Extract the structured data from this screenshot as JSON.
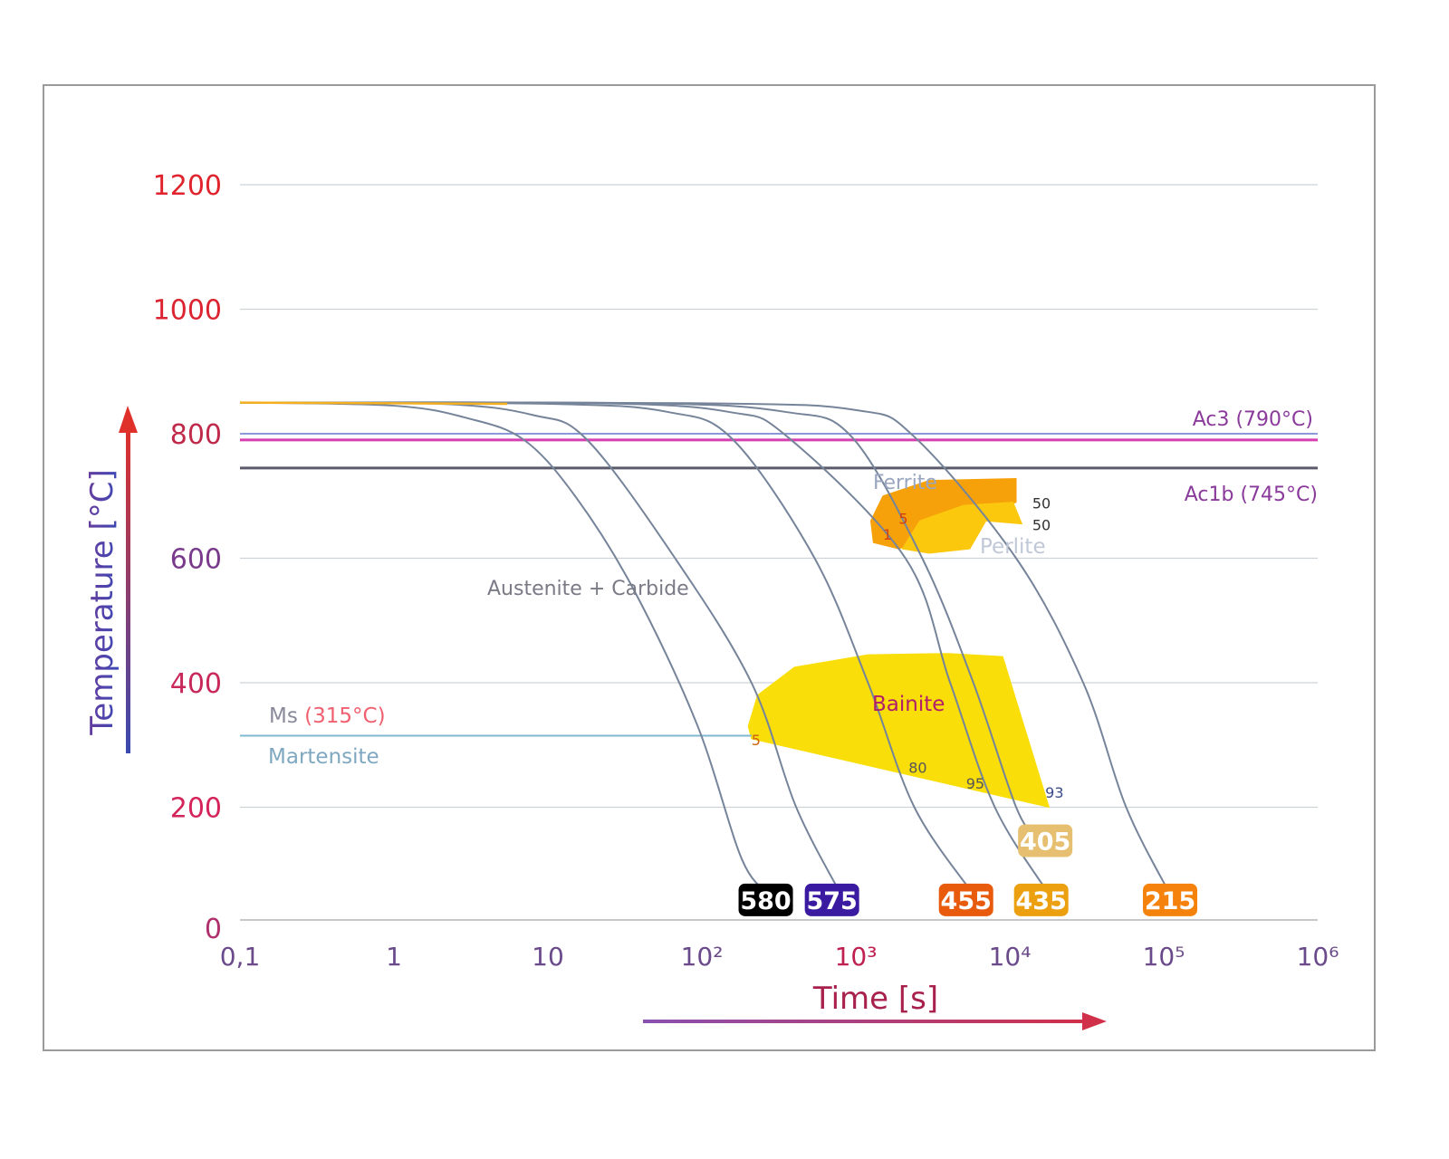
{
  "chart_data": {
    "type": "line",
    "title": "",
    "xlabel": "Time [s]",
    "ylabel": "Temperature [°C]",
    "xscale": "log",
    "xlim": [
      0.1,
      1000000
    ],
    "ylim": [
      0,
      1200
    ],
    "grid": true,
    "x_ticks": [
      {
        "value": 0.1,
        "label": "0,1"
      },
      {
        "value": 1,
        "label": "1"
      },
      {
        "value": 10,
        "label": "10"
      },
      {
        "value": 100,
        "label": "10²"
      },
      {
        "value": 1000,
        "label": "10³"
      },
      {
        "value": 10000,
        "label": "10⁴"
      },
      {
        "value": 100000,
        "label": "10⁵"
      },
      {
        "value": 1000000,
        "label": "10⁶"
      }
    ],
    "y_ticks": [
      {
        "value": 0,
        "label": "0",
        "color": "#b0306e"
      },
      {
        "value": 200,
        "label": "200",
        "color": "#d4245a"
      },
      {
        "value": 400,
        "label": "400",
        "color": "#c8285a"
      },
      {
        "value": 600,
        "label": "600",
        "color": "#7a3a8c"
      },
      {
        "value": 800,
        "label": "800",
        "color": "#c02a4a"
      },
      {
        "value": 1000,
        "label": "1000",
        "color": "#dc2330"
      },
      {
        "value": 1200,
        "label": "1200",
        "color": "#e0232c"
      }
    ],
    "reference_lines": [
      {
        "label": "Ac3 (790°C)",
        "value": 790,
        "color": "#d63fb0",
        "label_color": "#8a3a9a"
      },
      {
        "label": "Ac1b (745°C)",
        "value": 745,
        "color": "#5a5a6a",
        "label_color": "#8a3a9a"
      },
      {
        "label": "Ms",
        "label_extra": "(315°C)",
        "value": 315,
        "color": "#7fb8d0",
        "label_color": "#8a8a9a",
        "extra_color": "#f06070"
      }
    ],
    "region_labels": {
      "austenite": "Austenite + Carbide",
      "martensite": "Martensite",
      "ferrite": "Ferrite",
      "perlite": "Perlite",
      "bainite": "Bainite"
    },
    "regions": [
      {
        "name": "ferrite",
        "color": "#f7a10a",
        "points": [
          [
            1250,
            660
          ],
          [
            1500,
            700
          ],
          [
            3000,
            725
          ],
          [
            11000,
            728
          ],
          [
            11000,
            690
          ],
          [
            1900,
            615
          ],
          [
            1300,
            625
          ]
        ]
      },
      {
        "name": "perlite",
        "color": "#fbc80e",
        "points": [
          [
            2000,
            615
          ],
          [
            2600,
            660
          ],
          [
            5000,
            685
          ],
          [
            10500,
            690
          ],
          [
            12000,
            655
          ],
          [
            7000,
            660
          ],
          [
            5500,
            615
          ],
          [
            3000,
            608
          ]
        ]
      },
      {
        "name": "bainite",
        "color": "#f9de0a",
        "points": [
          [
            200,
            330
          ],
          [
            230,
            380
          ],
          [
            400,
            425
          ],
          [
            1200,
            445
          ],
          [
            4000,
            447
          ],
          [
            9000,
            442
          ],
          [
            18000,
            200
          ],
          [
            210,
            310
          ]
        ]
      }
    ],
    "region_annotations": [
      {
        "text": "1",
        "t": 1500,
        "T": 630,
        "color": "#d04010"
      },
      {
        "text": "5",
        "t": 1900,
        "T": 655,
        "color": "#d04010"
      },
      {
        "text": "50",
        "t": 14000,
        "T": 680,
        "color": "#333"
      },
      {
        "text": "50",
        "t": 14000,
        "T": 645,
        "color": "#333"
      },
      {
        "text": "5",
        "t": 210,
        "T": 300,
        "color": "#d06010"
      },
      {
        "text": "80",
        "t": 2200,
        "T": 255,
        "color": "#555"
      },
      {
        "text": "95",
        "t": 5200,
        "T": 230,
        "color": "#555"
      },
      {
        "text": "93",
        "t": 17000,
        "T": 215,
        "color": "#3a4a8a"
      }
    ],
    "curves": [
      {
        "hardness": "580",
        "badge_color": "#000000",
        "badge_t": 260,
        "badge_T": 25,
        "points": [
          [
            0.1,
            850
          ],
          [
            1,
            845
          ],
          [
            3,
            825
          ],
          [
            7,
            790
          ],
          [
            15,
            700
          ],
          [
            36,
            550
          ],
          [
            93,
            333
          ],
          [
            183,
            115
          ],
          [
            280,
            60
          ]
        ]
      },
      {
        "hardness": "575",
        "badge_color": "#3a1aa0",
        "badge_t": 700,
        "badge_T": 25,
        "points": [
          [
            0.1,
            850
          ],
          [
            2,
            848
          ],
          [
            8,
            830
          ],
          [
            18,
            790
          ],
          [
            67,
            600
          ],
          [
            210,
            400
          ],
          [
            410,
            200
          ],
          [
            800,
            60
          ]
        ]
      },
      {
        "hardness": "455",
        "badge_color": "#e85a0c",
        "badge_t": 5200,
        "badge_T": 25,
        "points": [
          [
            0.1,
            850
          ],
          [
            10,
            848
          ],
          [
            60,
            835
          ],
          [
            160,
            790
          ],
          [
            540,
            600
          ],
          [
            1200,
            400
          ],
          [
            2400,
            200
          ],
          [
            5800,
            60
          ]
        ]
      },
      {
        "hardness": "435",
        "badge_color": "#eca010",
        "badge_t": 16000,
        "badge_T": 25,
        "points": [
          [
            0.1,
            850
          ],
          [
            20,
            849
          ],
          [
            150,
            835
          ],
          [
            360,
            795
          ],
          [
            2100,
            600
          ],
          [
            4100,
            400
          ],
          [
            8000,
            200
          ],
          [
            18000,
            60
          ]
        ]
      },
      {
        "hardness": "405",
        "badge_color": "#e6c070",
        "badge_t": 17000,
        "badge_T": 120,
        "points": [
          [
            0.1,
            850
          ],
          [
            40,
            849
          ],
          [
            350,
            835
          ],
          [
            940,
            795
          ],
          [
            2700,
            600
          ],
          [
            5800,
            400
          ],
          [
            11000,
            200
          ],
          [
            15000,
            150
          ]
        ]
      },
      {
        "hardness": "215",
        "badge_color": "#f5820c",
        "badge_t": 110000,
        "badge_T": 25,
        "points": [
          [
            0.1,
            850
          ],
          [
            100,
            849
          ],
          [
            1000,
            838
          ],
          [
            2400,
            795
          ],
          [
            11000,
            600
          ],
          [
            30000,
            400
          ],
          [
            57000,
            200
          ],
          [
            110000,
            60
          ]
        ]
      }
    ]
  }
}
